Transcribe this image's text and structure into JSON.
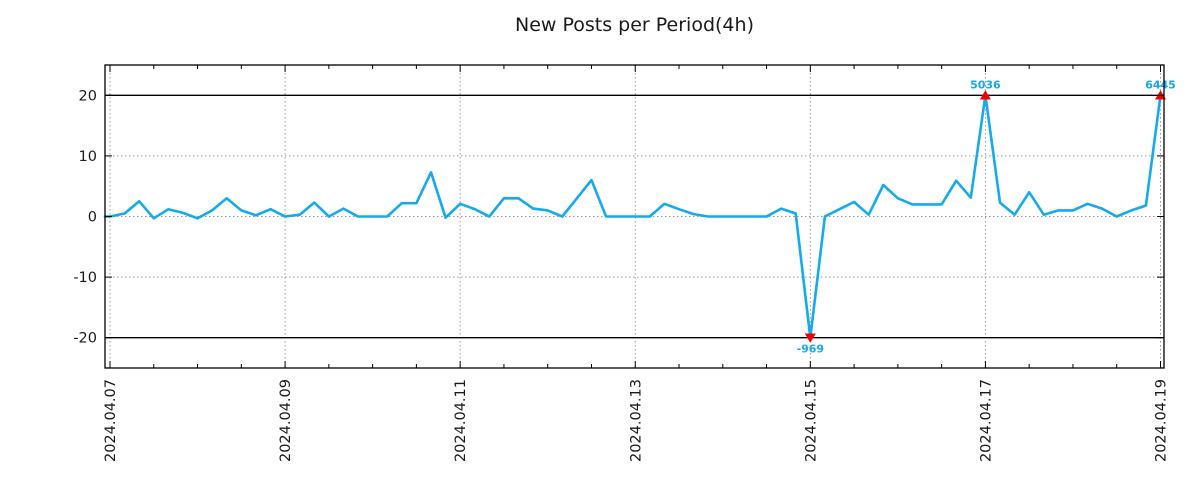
{
  "chart_data": {
    "type": "line",
    "title": "New Posts per Period(4h)",
    "period_hours": 4,
    "points_per_day": 6,
    "x_tick_labels": [
      "2024.04.07",
      "2024.04.09",
      "2024.04.11",
      "2024.04.13",
      "2024.04.15",
      "2024.04.17",
      "2024.04.19"
    ],
    "x_tick_indices": [
      0,
      12,
      24,
      36,
      48,
      60,
      72
    ],
    "minor_tick_every": 3,
    "y_ticks": [
      -20,
      -10,
      0,
      10,
      20
    ],
    "y_gridlines": [
      -10,
      0,
      10
    ],
    "limit_lines": [
      -20,
      20
    ],
    "ylim": [
      -25,
      25
    ],
    "clip": 20,
    "grid": true,
    "legend_position": "none",
    "values": [
      0,
      0.5,
      2.5,
      -0.3,
      1.2,
      0.6,
      -0.3,
      1,
      3,
      1,
      0.2,
      1.2,
      0,
      0.3,
      2.3,
      0,
      1.3,
      0,
      0,
      0,
      2.2,
      2.2,
      7.3,
      -0.2,
      2.1,
      1.2,
      0,
      3,
      3,
      1.3,
      1,
      0,
      3,
      6,
      0,
      0,
      0,
      0,
      2.1,
      1.2,
      0.4,
      0,
      0,
      0,
      0,
      0,
      1.3,
      0.5,
      -969,
      0,
      1.2,
      2.4,
      0.3,
      5.2,
      3,
      2,
      2,
      2,
      5.9,
      3.1,
      5036,
      2.3,
      0.3,
      4,
      0.3,
      1,
      1,
      2.1,
      1.3,
      0,
      1,
      1.8,
      6445
    ],
    "annotations": [
      {
        "index": 48,
        "value": -969,
        "label": "-969",
        "direction": "down"
      },
      {
        "index": 60,
        "value": 5036,
        "label": "5036",
        "direction": "up"
      },
      {
        "index": 72,
        "value": 6445,
        "label": "6445",
        "direction": "up"
      }
    ],
    "line_color": "#15aaec",
    "annotation_text_color": "#15aaec",
    "marker_color": "#f40000",
    "grid_color": "#9a9a9a",
    "limit_line_color": "#000000",
    "axis_color": "#000000",
    "tick_label_color": "#1a1a1a"
  }
}
